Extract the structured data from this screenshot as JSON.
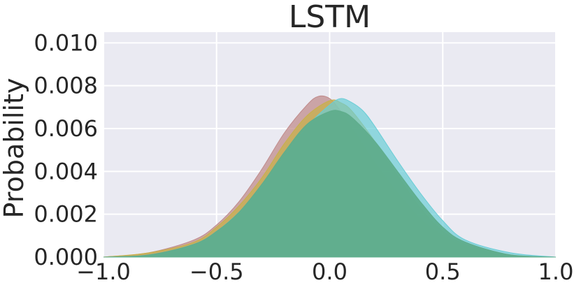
{
  "chart_data": {
    "type": "area",
    "title": "LSTM",
    "xlabel": "",
    "ylabel": "Probability",
    "xlim": [
      -1.0,
      1.0
    ],
    "ylim": [
      0.0,
      0.0105
    ],
    "x_ticks": [
      "−1.0",
      "−0.5",
      "0.0",
      "0.5",
      "1.0"
    ],
    "x_tick_values": [
      -1.0,
      -0.5,
      0.0,
      0.5,
      1.0
    ],
    "y_ticks": [
      "0.000",
      "0.002",
      "0.004",
      "0.006",
      "0.008",
      "0.010"
    ],
    "y_tick_values": [
      0.0,
      0.002,
      0.004,
      0.006,
      0.008,
      0.01
    ],
    "grid": true,
    "background": "#EAEAF2",
    "series": [
      {
        "color": "#C08C8C",
        "x": [
          -1.0,
          -0.8,
          -0.6,
          -0.5,
          -0.4,
          -0.3,
          -0.2,
          -0.1,
          -0.05,
          0.0,
          0.05,
          0.1,
          0.2,
          0.3,
          0.4,
          0.5,
          0.6,
          0.8,
          1.0
        ],
        "values": [
          0.0,
          0.0002,
          0.0008,
          0.0015,
          0.0026,
          0.0041,
          0.0058,
          0.0071,
          0.0075,
          0.0074,
          0.0068,
          0.006,
          0.0044,
          0.003,
          0.0018,
          0.001,
          0.0005,
          0.0001,
          0.0
        ]
      },
      {
        "color": "#C8B04A",
        "x": [
          -1.0,
          -0.8,
          -0.6,
          -0.5,
          -0.4,
          -0.3,
          -0.2,
          -0.1,
          0.0,
          0.05,
          0.1,
          0.2,
          0.3,
          0.4,
          0.5,
          0.6,
          0.8,
          1.0
        ],
        "values": [
          0.0,
          0.0002,
          0.0007,
          0.0014,
          0.0024,
          0.0037,
          0.0053,
          0.0066,
          0.0073,
          0.0072,
          0.0068,
          0.0054,
          0.0038,
          0.0023,
          0.0012,
          0.0006,
          0.0001,
          0.0
        ]
      },
      {
        "color": "#6ACDD6",
        "x": [
          -1.0,
          -0.8,
          -0.6,
          -0.5,
          -0.4,
          -0.3,
          -0.2,
          -0.1,
          0.0,
          0.05,
          0.1,
          0.15,
          0.2,
          0.3,
          0.4,
          0.5,
          0.6,
          0.8,
          1.0
        ],
        "values": [
          0.0,
          0.0001,
          0.0006,
          0.0012,
          0.0021,
          0.0033,
          0.0047,
          0.0061,
          0.0071,
          0.0074,
          0.0072,
          0.0068,
          0.0061,
          0.0045,
          0.003,
          0.0017,
          0.0008,
          0.0002,
          0.0
        ]
      },
      {
        "color": "#5FAD8C",
        "x": [
          -1.0,
          -0.8,
          -0.6,
          -0.5,
          -0.4,
          -0.3,
          -0.2,
          -0.1,
          0.0,
          0.05,
          0.1,
          0.2,
          0.3,
          0.4,
          0.5,
          0.6,
          0.8,
          1.0
        ],
        "values": [
          0.0,
          0.0001,
          0.0006,
          0.0012,
          0.0021,
          0.0034,
          0.0049,
          0.0062,
          0.0068,
          0.0068,
          0.0065,
          0.0054,
          0.004,
          0.0026,
          0.0014,
          0.0007,
          0.0001,
          0.0
        ]
      }
    ]
  }
}
